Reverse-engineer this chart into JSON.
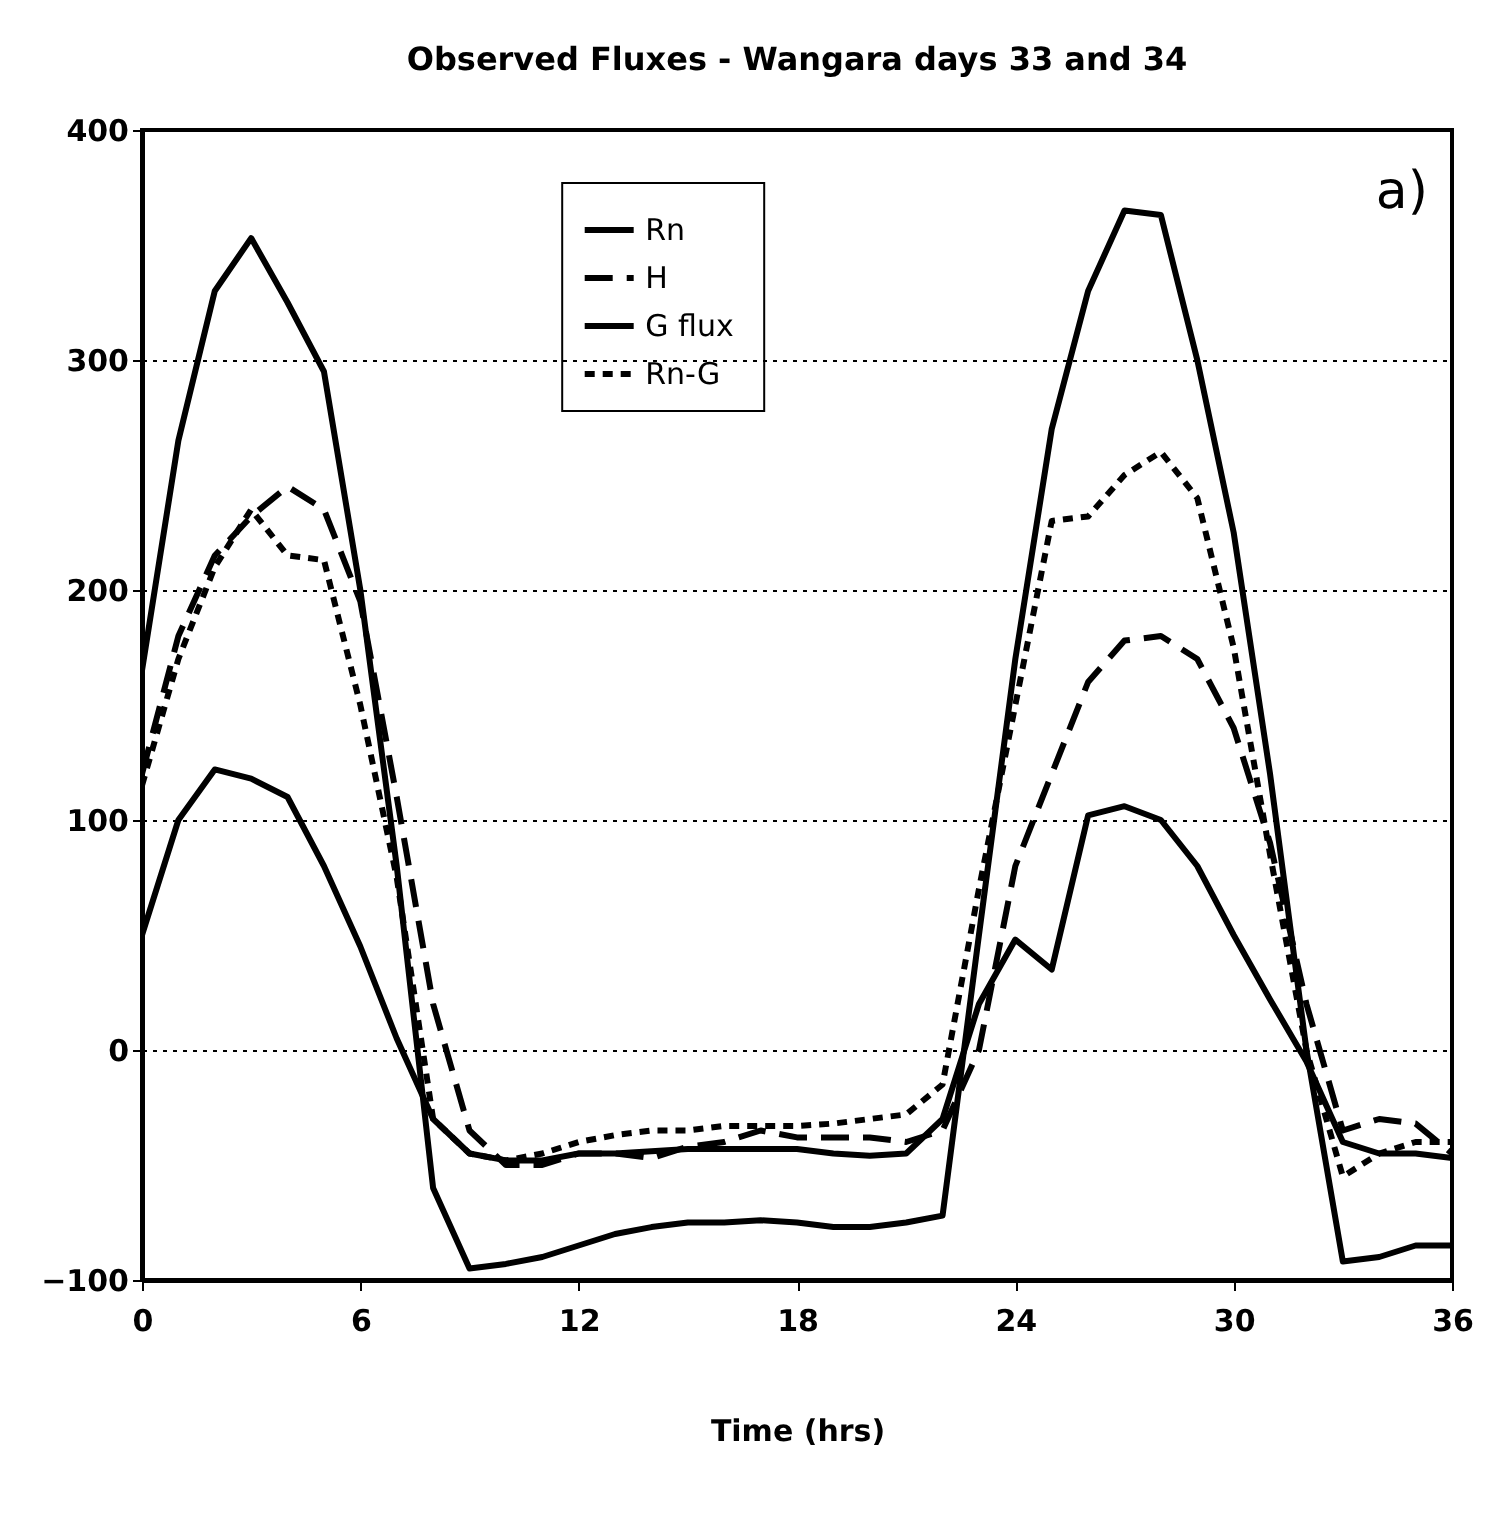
{
  "chart_data": {
    "type": "line",
    "title": "Observed Fluxes - Wangara days 33 and 34",
    "xlabel": "Time  (hrs)",
    "x": [
      0,
      1,
      2,
      3,
      4,
      5,
      6,
      7,
      8,
      9,
      10,
      11,
      12,
      13,
      14,
      15,
      16,
      17,
      18,
      19,
      20,
      21,
      22,
      23,
      24,
      25,
      26,
      27,
      28,
      29,
      30,
      31,
      32,
      33,
      34,
      35,
      36
    ],
    "series": [
      {
        "name": "Rn",
        "color": "#000000",
        "line_style": "solid",
        "values": [
          165,
          265,
          330,
          353,
          325,
          295,
          200,
          80,
          -60,
          -95,
          -93,
          -90,
          -85,
          -80,
          -77,
          -75,
          -75,
          -74,
          -75,
          -77,
          -77,
          -75,
          -72,
          50,
          170,
          270,
          330,
          365,
          363,
          300,
          225,
          120,
          0,
          -92,
          -90,
          -85,
          -85
        ]
      },
      {
        "name": "H",
        "color": "#000000",
        "line_style": "dashed",
        "values": [
          120,
          180,
          215,
          232,
          245,
          235,
          195,
          110,
          20,
          -35,
          -50,
          -50,
          -45,
          -45,
          -47,
          -42,
          -40,
          -35,
          -38,
          -38,
          -38,
          -40,
          -35,
          0,
          80,
          120,
          160,
          178,
          180,
          170,
          140,
          90,
          20,
          -35,
          -30,
          -32,
          -45
        ]
      },
      {
        "name": "G  flux",
        "color": "#000000",
        "line_style": "solid",
        "values": [
          50,
          100,
          122,
          118,
          110,
          80,
          45,
          5,
          -30,
          -45,
          -48,
          -48,
          -45,
          -45,
          -44,
          -43,
          -43,
          -43,
          -43,
          -45,
          -46,
          -45,
          -30,
          20,
          48,
          35,
          102,
          106,
          100,
          80,
          50,
          22,
          -5,
          -40,
          -45,
          -45,
          -47
        ]
      },
      {
        "name": "Rn-G",
        "color": "#000000",
        "line_style": "dotted",
        "values": [
          115,
          170,
          210,
          235,
          215,
          213,
          150,
          75,
          -30,
          -45,
          -48,
          -45,
          -40,
          -37,
          -35,
          -35,
          -33,
          -33,
          -33,
          -32,
          -30,
          -28,
          -15,
          70,
          150,
          230,
          232,
          250,
          260,
          240,
          175,
          85,
          0,
          -55,
          -45,
          -40,
          -40
        ]
      }
    ],
    "xlim": [
      0,
      36
    ],
    "xticks": [
      0,
      6,
      12,
      18,
      24,
      30,
      36
    ],
    "ylim": [
      -100,
      400
    ],
    "yticks": [
      -100,
      0,
      100,
      200,
      300,
      400
    ],
    "grid": "y",
    "legend": "top",
    "annotations": [
      "a)"
    ]
  }
}
